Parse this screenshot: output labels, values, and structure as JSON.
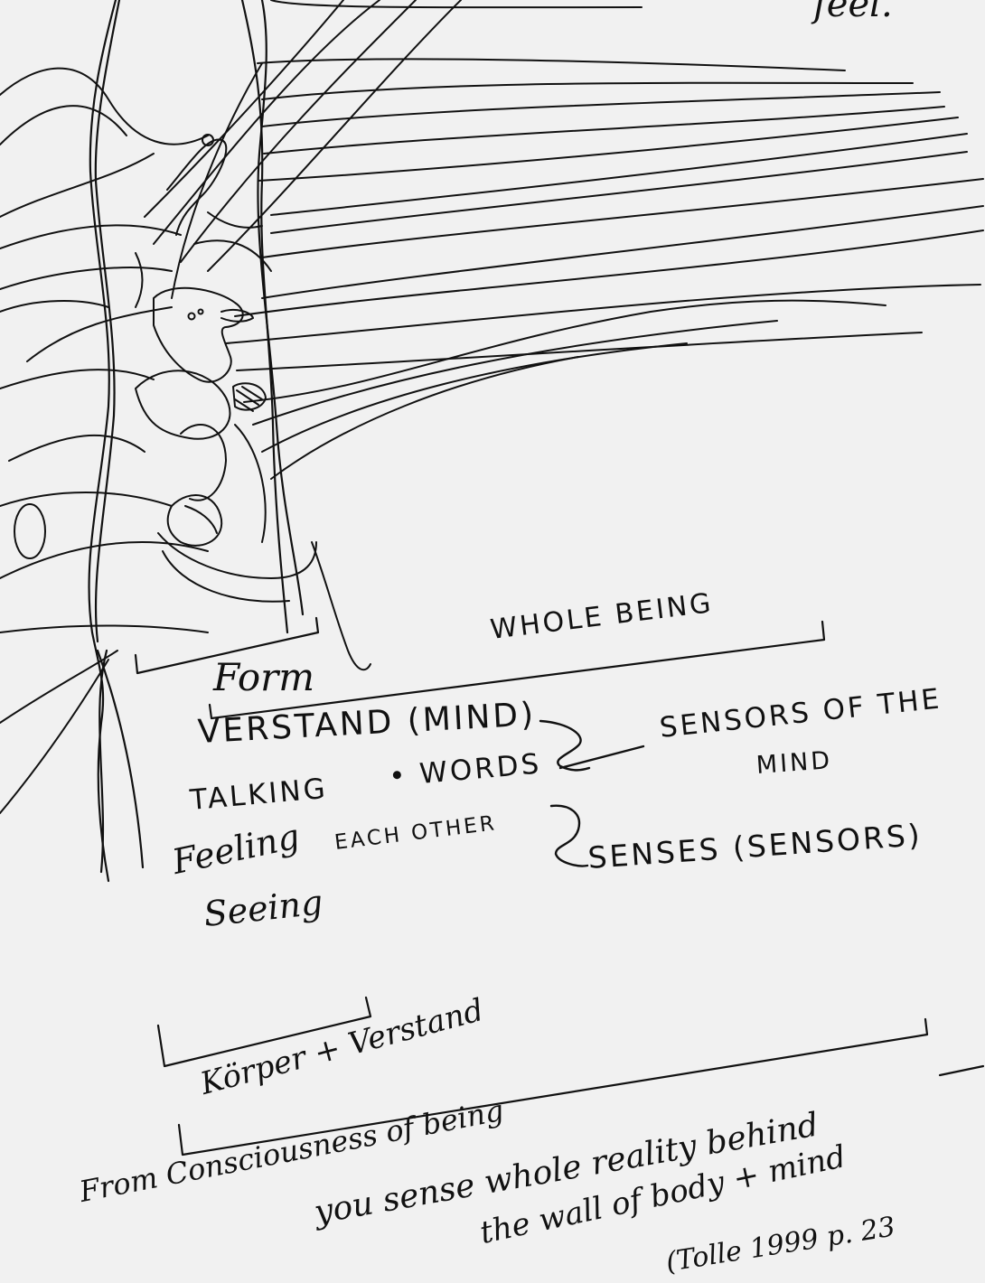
{
  "labels": {
    "top_fragment": "feel.",
    "whole_being": "WHOLE BEING",
    "form": "Form",
    "verstand": "VERSTAND (MIND)",
    "talking": "TALKING",
    "words": "• WORDS",
    "sensors_mind_line1": "SENSORS OF THE",
    "sensors_mind_line2": "MIND",
    "feeling": "Feeling",
    "each_other": "EACH OTHER",
    "senses": "SENSES (SENSORS)",
    "seeing": "Seeing",
    "koerper": "Körper + Verstand",
    "quote_line1": "From Consciousness of being",
    "quote_line2": "you sense whole reality behind",
    "quote_line3": "the wall of body + mind",
    "citation": "(Tolle 1999 p. 23"
  }
}
